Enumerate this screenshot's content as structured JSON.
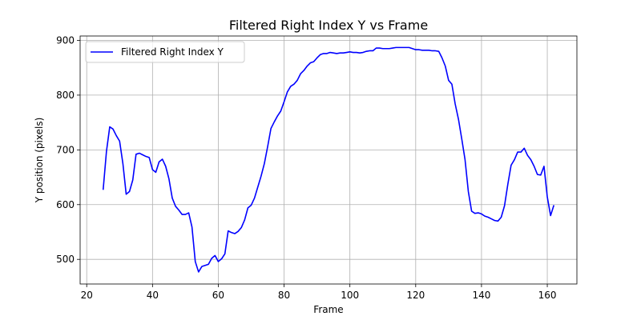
{
  "chart_data": {
    "type": "line",
    "title": "Filtered Right Index Y vs Frame",
    "xlabel": "Frame",
    "ylabel": "Y position (pixels)",
    "xlim": [
      18,
      169
    ],
    "ylim": [
      455,
      908
    ],
    "xticks": [
      20,
      40,
      60,
      80,
      100,
      120,
      140,
      160
    ],
    "yticks": [
      500,
      600,
      700,
      800,
      900
    ],
    "grid": true,
    "legend": "upper-left",
    "colors": {
      "series": "#0000ff",
      "grid": "#b0b0b0"
    },
    "series": [
      {
        "name": "Filtered Right Index Y",
        "x": [
          25,
          26,
          27,
          28,
          29,
          30,
          31,
          32,
          33,
          34,
          35,
          36,
          37,
          38,
          39,
          40,
          41,
          42,
          43,
          44,
          45,
          46,
          47,
          48,
          49,
          50,
          51,
          52,
          53,
          54,
          55,
          56,
          57,
          58,
          59,
          60,
          61,
          62,
          63,
          64,
          65,
          66,
          67,
          68,
          69,
          70,
          71,
          72,
          73,
          74,
          75,
          76,
          77,
          78,
          79,
          80,
          81,
          82,
          83,
          84,
          85,
          86,
          87,
          88,
          89,
          90,
          91,
          92,
          93,
          94,
          95,
          96,
          97,
          98,
          99,
          100,
          101,
          102,
          103,
          104,
          105,
          106,
          107,
          108,
          109,
          110,
          111,
          112,
          113,
          114,
          115,
          116,
          117,
          118,
          119,
          120,
          121,
          122,
          123,
          124,
          125,
          126,
          127,
          128,
          129,
          130,
          131,
          132,
          133,
          134,
          135,
          136,
          137,
          138,
          139,
          140,
          141,
          142,
          143,
          144,
          145,
          146,
          147,
          148,
          149,
          150,
          151,
          152,
          153,
          154,
          155,
          156,
          157,
          158,
          159,
          160,
          161,
          162
        ],
        "y": [
          627,
          697,
          742,
          738,
          726,
          716,
          675,
          619,
          624,
          645,
          692,
          694,
          691,
          688,
          686,
          664,
          659,
          678,
          683,
          670,
          647,
          612,
          597,
          590,
          582,
          582,
          585,
          559,
          496,
          477,
          487,
          489,
          491,
          502,
          507,
          496,
          501,
          510,
          552,
          549,
          547,
          551,
          558,
          572,
          594,
          599,
          612,
          632,
          652,
          675,
          706,
          739,
          751,
          762,
          771,
          788,
          806,
          816,
          820,
          827,
          839,
          845,
          853,
          859,
          861,
          868,
          874,
          876,
          876,
          878,
          877,
          876,
          877,
          877,
          878,
          879,
          878,
          878,
          877,
          878,
          880,
          881,
          881,
          886,
          886,
          885,
          885,
          885,
          886,
          887,
          887,
          887,
          887,
          887,
          885,
          883,
          883,
          882,
          882,
          882,
          881,
          881,
          880,
          868,
          853,
          827,
          820,
          784,
          756,
          720,
          682,
          624,
          588,
          584,
          585,
          583,
          579,
          577,
          574,
          571,
          570,
          577,
          598,
          637,
          672,
          682,
          696,
          696,
          703,
          690,
          682,
          670,
          655,
          654,
          670,
          614,
          580,
          599
        ]
      }
    ]
  }
}
